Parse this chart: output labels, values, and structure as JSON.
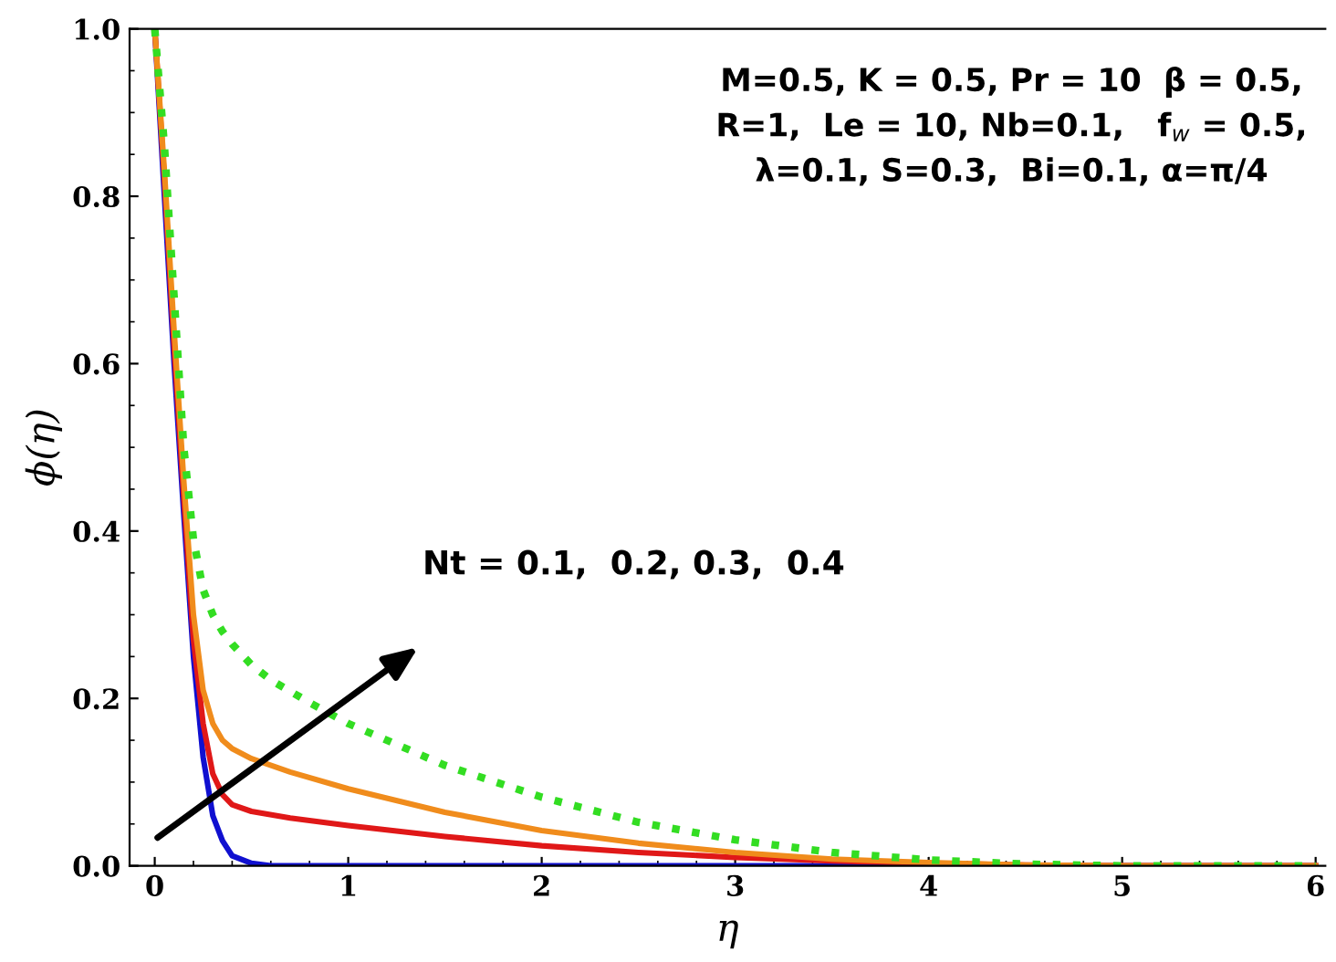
{
  "chart_data": {
    "type": "line",
    "xlabel": "η",
    "ylabel": "ϕ(η)",
    "xlim": [
      -0.13,
      6.05
    ],
    "ylim": [
      0,
      1
    ],
    "xticks": [
      0,
      1,
      2,
      3,
      4,
      5,
      6
    ],
    "yticks": [
      {
        "value": 0,
        "label": "0.0"
      },
      0.2,
      0.4,
      0.6,
      0.8,
      {
        "value": 1,
        "label": "1.0"
      }
    ],
    "grid": false,
    "legend": false,
    "marker": "none",
    "annotations": [
      "M=0.5, K = 0.5, Pr = 10  β = 0.5,\nR=1,  Le = 10, Nb=0.1,   f$_{w}$ = 0.5,\nλ=0.1, S=0.3,  Bi=0.1, α=π/4",
      "Nt = 0.1,  0.2, 0.3,  0.4"
    ],
    "series": [
      {
        "color": "#1010d0",
        "line_style": "solid",
        "x": [
          0,
          0.05,
          0.1,
          0.15,
          0.2,
          0.25,
          0.3,
          0.35,
          0.4,
          0.5,
          0.6,
          1,
          2,
          3,
          4,
          5,
          6
        ],
        "values": [
          1,
          0.8,
          0.6,
          0.42,
          0.25,
          0.13,
          0.06,
          0.03,
          0.012,
          0.003,
          0,
          0,
          0,
          0,
          0,
          0,
          0
        ]
      },
      {
        "color": "#e01818",
        "line_style": "solid",
        "x": [
          0,
          0.05,
          0.1,
          0.15,
          0.2,
          0.25,
          0.3,
          0.35,
          0.4,
          0.5,
          0.7,
          1,
          1.5,
          2,
          2.5,
          3,
          3.5,
          4,
          4.5,
          5,
          6
        ],
        "values": [
          1,
          0.82,
          0.62,
          0.44,
          0.27,
          0.17,
          0.11,
          0.085,
          0.073,
          0.065,
          0.057,
          0.048,
          0.035,
          0.024,
          0.016,
          0.01,
          0.006,
          0.003,
          0.001,
          0,
          0
        ]
      },
      {
        "color": "#f08c1c",
        "line_style": "solid",
        "x": [
          0,
          0.05,
          0.1,
          0.15,
          0.2,
          0.25,
          0.3,
          0.35,
          0.4,
          0.5,
          0.7,
          1,
          1.5,
          2,
          2.5,
          3,
          3.5,
          4,
          4.5,
          5,
          6
        ],
        "values": [
          1,
          0.83,
          0.64,
          0.46,
          0.3,
          0.21,
          0.17,
          0.15,
          0.14,
          0.128,
          0.112,
          0.092,
          0.064,
          0.042,
          0.027,
          0.016,
          0.008,
          0.004,
          0.001,
          0,
          0
        ]
      },
      {
        "color": "#33dd22",
        "line_style": "dotted",
        "x": [
          0,
          0.05,
          0.1,
          0.15,
          0.2,
          0.25,
          0.3,
          0.35,
          0.4,
          0.5,
          0.6,
          0.8,
          1,
          1.5,
          2,
          2.5,
          3,
          3.5,
          4,
          4.5,
          5,
          6
        ],
        "values": [
          1,
          0.86,
          0.68,
          0.5,
          0.39,
          0.33,
          0.3,
          0.28,
          0.265,
          0.24,
          0.222,
          0.195,
          0.17,
          0.12,
          0.082,
          0.052,
          0.031,
          0.016,
          0.007,
          0.002,
          0,
          0
        ]
      }
    ]
  }
}
